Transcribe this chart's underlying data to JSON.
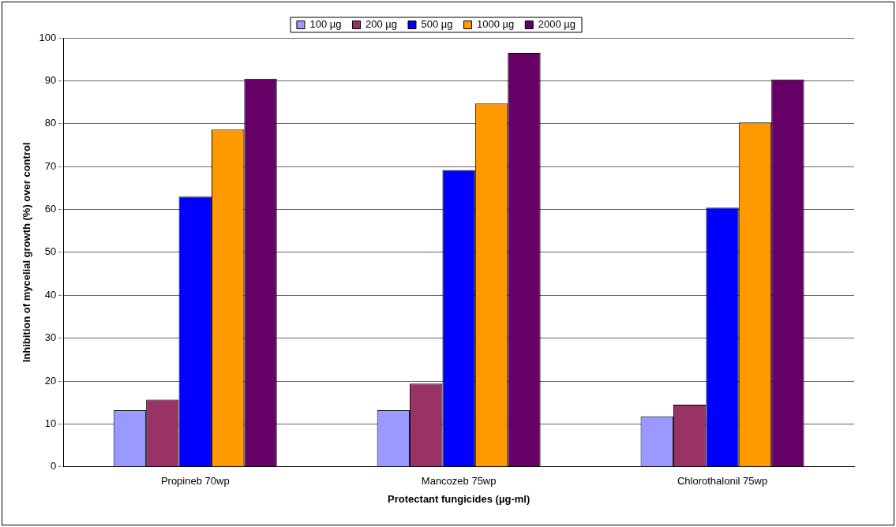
{
  "chart_data": {
    "type": "bar",
    "xlabel": "Protectant fungicides (µg-ml)",
    "ylabel": "Inhibition of mycelial growth (%) over control",
    "categories": [
      "Propineb 70wp",
      "Mancozeb 75wp",
      "Chlorothalonil 75wp"
    ],
    "series": [
      {
        "name": "100 µg",
        "color": "#9999ff",
        "values": [
          13.2,
          13.2,
          11.8
        ]
      },
      {
        "name": "200 µg",
        "color": "#993366",
        "values": [
          15.7,
          19.4,
          14.5
        ]
      },
      {
        "name": "500 µg",
        "color": "#0000ff",
        "values": [
          63,
          69.2,
          60.4
        ]
      },
      {
        "name": "1000 µg",
        "color": "#ff9900",
        "values": [
          78.6,
          84.7,
          80.3
        ]
      },
      {
        "name": "2000 µg",
        "color": "#660066",
        "values": [
          90.5,
          96.5,
          90.3
        ]
      }
    ],
    "ylim": [
      0,
      100
    ],
    "yticks": [
      0,
      10,
      20,
      30,
      40,
      50,
      60,
      70,
      80,
      90,
      100
    ],
    "grid": "y",
    "line_style": "dashed",
    "legend": "top"
  }
}
